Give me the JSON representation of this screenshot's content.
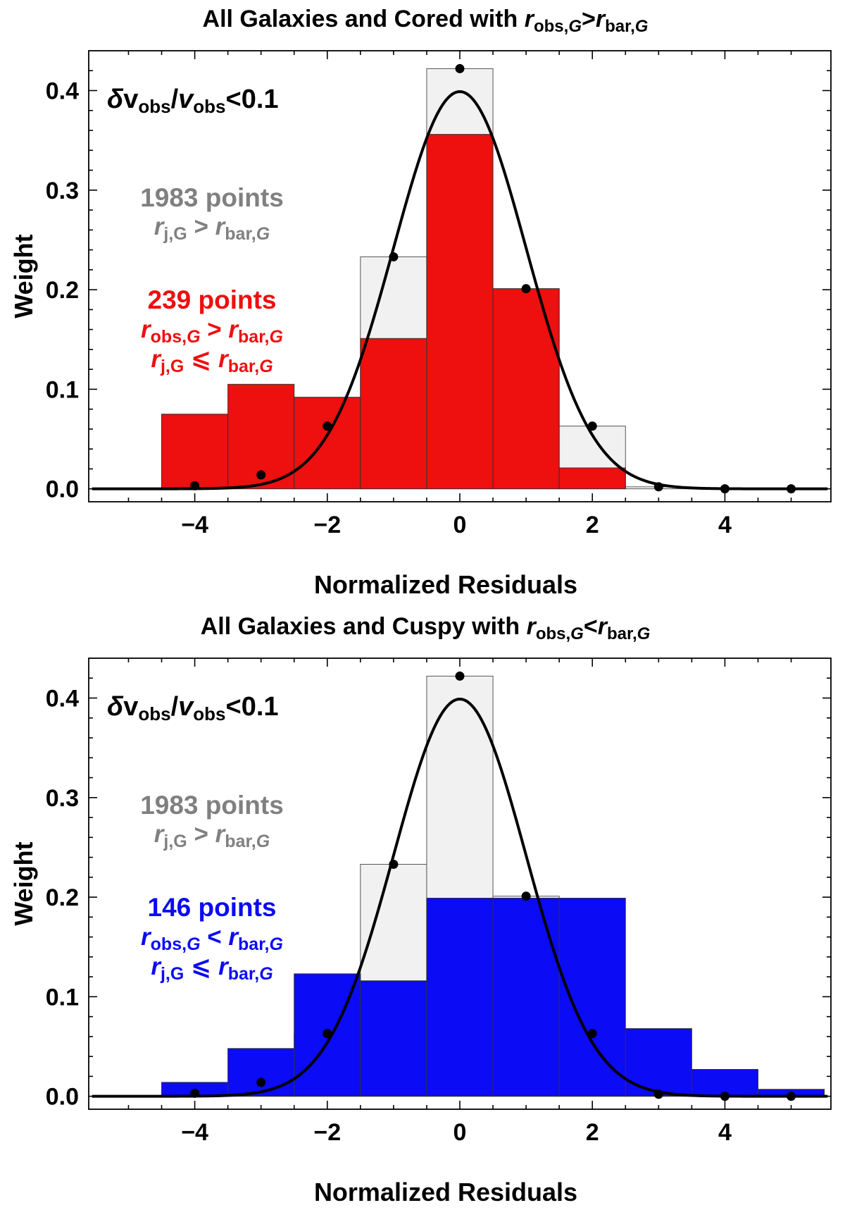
{
  "chart_data": [
    {
      "type": "bar",
      "title": {
        "lead": "All Galaxies and Cored with ",
        "r1": "r",
        "s1": "obs,",
        "s1i": "G",
        "op": ">",
        "r2": "r",
        "s2": "bar,",
        "s2i": "G"
      },
      "xlabel": "Normalized Residuals",
      "ylabel": "Weight",
      "xlim": [
        -5.6,
        5.6
      ],
      "ylim": [
        -0.013,
        0.44
      ],
      "xticks": [
        -4,
        -2,
        0,
        2,
        4
      ],
      "xtick_labels": [
        "−4",
        "−2",
        "0",
        "2",
        "4"
      ],
      "yticks": [
        0.0,
        0.1,
        0.2,
        0.3,
        0.4
      ],
      "ytick_labels": [
        "0.0",
        "0.1",
        "0.2",
        "0.3",
        "0.4"
      ],
      "bins": [
        -4,
        -3,
        -2,
        -1,
        0,
        1,
        2,
        3,
        4,
        5
      ],
      "bin_width": 1,
      "series": [
        {
          "name": "all galaxies (1983 points)",
          "color": "#f1f1f1",
          "edge": "#555555",
          "values": [
            0.003,
            0.014,
            0.063,
            0.233,
            0.422,
            0.201,
            0.063,
            0.002,
            0.0,
            0.0
          ]
        },
        {
          "name": "subset (239 points)",
          "color": "#ee0f0f",
          "edge": "#333333",
          "values": [
            0.075,
            0.105,
            0.092,
            0.151,
            0.356,
            0.201,
            0.021,
            0.0,
            0.0,
            0.0
          ]
        }
      ],
      "points": {
        "x": [
          -4,
          -3,
          -2,
          -1,
          0,
          1,
          2,
          3,
          4,
          5
        ],
        "y": [
          0.003,
          0.014,
          0.063,
          0.233,
          0.422,
          0.201,
          0.063,
          0.002,
          0.0,
          0.0
        ]
      },
      "curve": {
        "type": "gaussian",
        "mean": 0,
        "sigma": 1,
        "color": "#000000"
      },
      "annotations": {
        "cond": {
          "d": "δ",
          "v1": "v",
          "s1": "obs",
          "sl": "/",
          "v2": "v",
          "s2": "obs",
          "tail": "<0.1"
        },
        "gray_count": "1983 points",
        "gray_cond": {
          "r1": "r",
          "s1": "j,G",
          "op": " > ",
          "r2": "r",
          "s2": "bar,",
          "s2i": "G"
        },
        "color_count": "239 points",
        "color_cond1": {
          "r1": "r",
          "s1": "obs,",
          "s1i": "G",
          "op": " > ",
          "r2": "r",
          "s2": "bar,",
          "s2i": "G"
        },
        "color_cond2": {
          "r1": "r",
          "s1": "j,G",
          "op": " ⩽ ",
          "r2": "r",
          "s2": "bar,",
          "s2i": "G"
        },
        "gray_color": "#808080",
        "accent_color": "#ee0f0f"
      }
    },
    {
      "type": "bar",
      "title": {
        "lead": "All Galaxies and Cuspy with ",
        "r1": "r",
        "s1": "obs,",
        "s1i": "G",
        "op": "<",
        "r2": "r",
        "s2": "bar,",
        "s2i": "G"
      },
      "xlabel": "Normalized Residuals",
      "ylabel": "Weight",
      "xlim": [
        -5.6,
        5.6
      ],
      "ylim": [
        -0.013,
        0.44
      ],
      "xticks": [
        -4,
        -2,
        0,
        2,
        4
      ],
      "xtick_labels": [
        "−4",
        "−2",
        "0",
        "2",
        "4"
      ],
      "yticks": [
        0.0,
        0.1,
        0.2,
        0.3,
        0.4
      ],
      "ytick_labels": [
        "0.0",
        "0.1",
        "0.2",
        "0.3",
        "0.4"
      ],
      "bins": [
        -4,
        -3,
        -2,
        -1,
        0,
        1,
        2,
        3,
        4,
        5
      ],
      "bin_width": 1,
      "series": [
        {
          "name": "all galaxies (1983 points)",
          "color": "#f1f1f1",
          "edge": "#555555",
          "values": [
            0.003,
            0.014,
            0.063,
            0.233,
            0.422,
            0.201,
            0.063,
            0.002,
            0.0,
            0.0
          ]
        },
        {
          "name": "subset (146 points)",
          "color": "#0b0bf5",
          "edge": "#333333",
          "values": [
            0.014,
            0.048,
            0.123,
            0.116,
            0.199,
            0.199,
            0.199,
            0.068,
            0.027,
            0.007
          ]
        }
      ],
      "points": {
        "x": [
          -4,
          -3,
          -2,
          -1,
          0,
          1,
          2,
          3,
          4,
          5
        ],
        "y": [
          0.003,
          0.014,
          0.063,
          0.233,
          0.422,
          0.201,
          0.063,
          0.002,
          0.0,
          0.0
        ]
      },
      "curve": {
        "type": "gaussian",
        "mean": 0,
        "sigma": 1,
        "color": "#000000"
      },
      "annotations": {
        "cond": {
          "d": "δ",
          "v1": "v",
          "s1": "obs",
          "sl": "/",
          "v2": "v",
          "s2": "obs",
          "tail": "<0.1"
        },
        "gray_count": "1983 points",
        "gray_cond": {
          "r1": "r",
          "s1": "j,G",
          "op": " > ",
          "r2": "r",
          "s2": "bar,",
          "s2i": "G"
        },
        "color_count": "146 points",
        "color_cond1": {
          "r1": "r",
          "s1": "obs,",
          "s1i": "G",
          "op": " < ",
          "r2": "r",
          "s2": "bar,",
          "s2i": "G"
        },
        "color_cond2": {
          "r1": "r",
          "s1": "j,G",
          "op": " ⩽ ",
          "r2": "r",
          "s2": "bar,",
          "s2i": "G"
        },
        "gray_color": "#808080",
        "accent_color": "#0b0bf5"
      }
    }
  ]
}
